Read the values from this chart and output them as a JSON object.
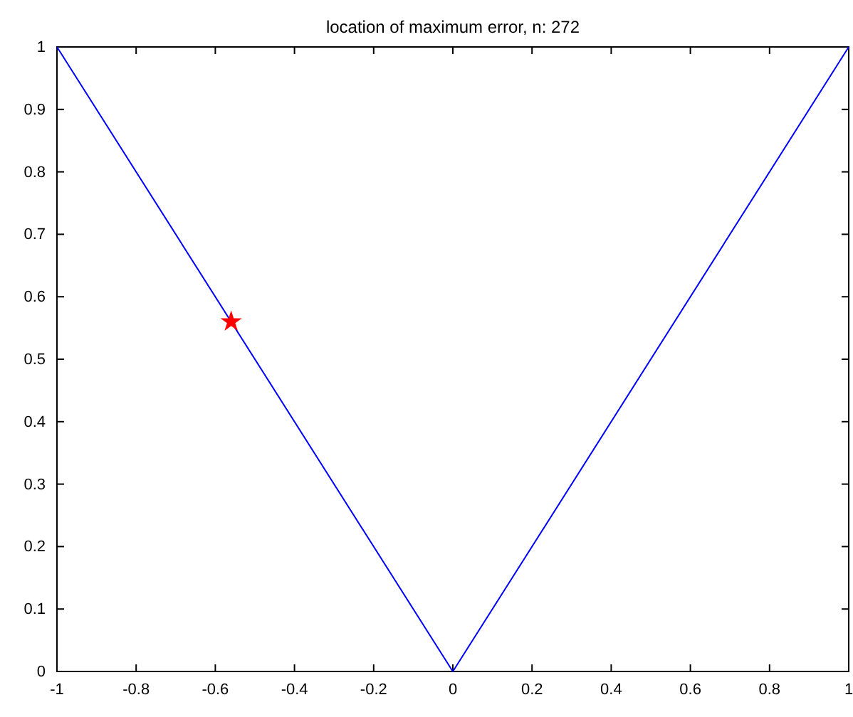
{
  "chart_data": {
    "type": "line",
    "title": "location of maximum error, n: 272",
    "xlim": [
      -1,
      1
    ],
    "xticks": [
      -1,
      -0.8,
      -0.6,
      -0.4,
      -0.2,
      0,
      0.2,
      0.4,
      0.6,
      0.8,
      1
    ],
    "ylim": [
      0,
      1
    ],
    "yticks": [
      0,
      0.1,
      0.2,
      0.3,
      0.4,
      0.5,
      0.6,
      0.7,
      0.8,
      0.9,
      1
    ],
    "grid": false,
    "series": [
      {
        "type": "line",
        "color": "#0000ff",
        "x": [
          -1,
          0,
          1
        ],
        "values": [
          1,
          0,
          1
        ],
        "marker": "none",
        "line_style": "solid"
      },
      {
        "type": "scatter",
        "color": "#ff0000",
        "x": [
          -0.56
        ],
        "values": [
          0.56
        ],
        "marker": "star"
      }
    ]
  }
}
